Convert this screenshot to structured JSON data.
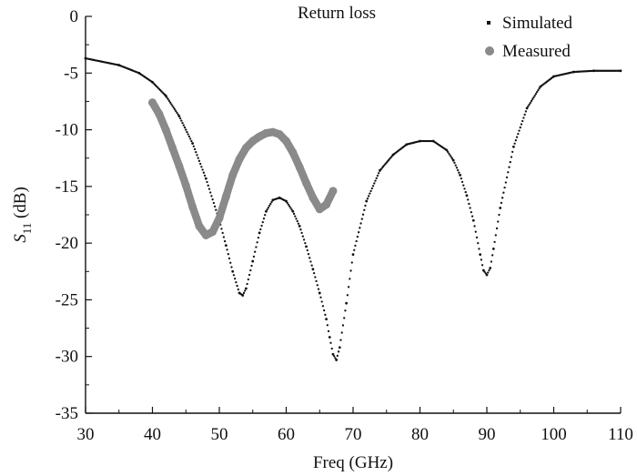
{
  "chart_data": {
    "type": "line",
    "title": "Return loss",
    "xlabel": "Freq (GHz)",
    "ylabel": {
      "symbol": "S",
      "subscript": "11",
      "unit": " (dB)"
    },
    "xlim": [
      30,
      110
    ],
    "ylim": [
      -35,
      0
    ],
    "x_ticks": [
      30,
      40,
      50,
      60,
      70,
      80,
      90,
      100,
      110
    ],
    "y_ticks": [
      0,
      -5,
      -10,
      -15,
      -20,
      -25,
      -30,
      -35
    ],
    "grid": false,
    "legend_position": "top-right",
    "series": [
      {
        "name": "Simulated",
        "style": "small-dots",
        "color": "#111111",
        "x": [
          30,
          35,
          38,
          40,
          42,
          44,
          46,
          48,
          50,
          51,
          52,
          53,
          53.5,
          54,
          55,
          56,
          57,
          58,
          59,
          60,
          61,
          62,
          63,
          64,
          65,
          66,
          66.5,
          67,
          67.5,
          68,
          69,
          70,
          72,
          74,
          76,
          78,
          80,
          82,
          84,
          85,
          86,
          87,
          88,
          89,
          89.5,
          90,
          90.5,
          91,
          92,
          94,
          96,
          98,
          100,
          103,
          106,
          110
        ],
        "y": [
          -3.7,
          -4.3,
          -5.0,
          -5.8,
          -7.0,
          -8.8,
          -11.2,
          -14.3,
          -18.0,
          -20.2,
          -22.5,
          -24.4,
          -24.6,
          -24.0,
          -21.6,
          -19.1,
          -17.2,
          -16.2,
          -16.0,
          -16.3,
          -17.2,
          -18.5,
          -20.3,
          -22.3,
          -24.4,
          -26.7,
          -28.3,
          -29.8,
          -30.3,
          -29.2,
          -25.3,
          -21.0,
          -16.3,
          -13.6,
          -12.2,
          -11.3,
          -11.0,
          -11.0,
          -11.8,
          -12.7,
          -14.0,
          -15.8,
          -18.0,
          -21.0,
          -22.4,
          -22.8,
          -22.2,
          -20.5,
          -16.9,
          -11.5,
          -8.1,
          -6.2,
          -5.3,
          -4.9,
          -4.8,
          -4.8
        ]
      },
      {
        "name": "Measured",
        "style": "thick-dots",
        "color": "#8a8a8a",
        "x": [
          40,
          41,
          42,
          43,
          44,
          45,
          46,
          47,
          48,
          49,
          50,
          51,
          52,
          53,
          54,
          55,
          56,
          57,
          58,
          59,
          60,
          61,
          62,
          63,
          64,
          65,
          66,
          67
        ],
        "y": [
          -7.6,
          -8.6,
          -10.0,
          -11.6,
          -13.2,
          -14.9,
          -16.8,
          -18.5,
          -19.3,
          -19.0,
          -17.8,
          -15.9,
          -14.0,
          -12.6,
          -11.6,
          -11.0,
          -10.6,
          -10.3,
          -10.2,
          -10.4,
          -11.0,
          -12.0,
          -13.3,
          -14.7,
          -16.0,
          -17.0,
          -16.6,
          -15.4
        ]
      }
    ]
  }
}
